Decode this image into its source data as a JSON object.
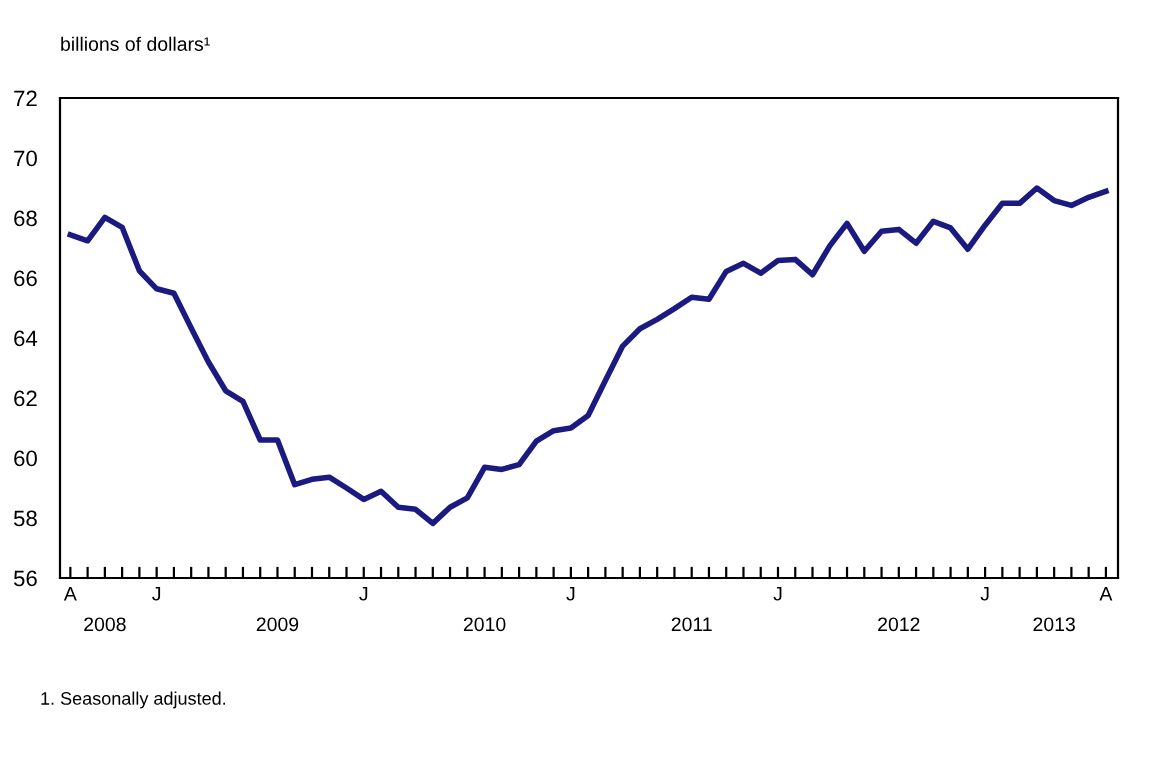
{
  "chart_data": {
    "type": "line",
    "ylabel": "billions of dollars¹",
    "categories": [
      "A",
      null,
      "2008",
      null,
      null,
      "J",
      null,
      null,
      null,
      null,
      null,
      null,
      "2009",
      null,
      null,
      null,
      null,
      "J",
      null,
      null,
      null,
      null,
      null,
      null,
      "2010",
      null,
      null,
      null,
      null,
      "J",
      null,
      null,
      null,
      null,
      null,
      null,
      "2011",
      null,
      null,
      null,
      null,
      "J",
      null,
      null,
      null,
      null,
      null,
      null,
      "2012",
      null,
      null,
      null,
      null,
      "J",
      null,
      null,
      null,
      "2013",
      null,
      null,
      "A"
    ],
    "series": [
      {
        "color": "#1a1a80",
        "values": [
          67.44,
          67.24,
          68.02,
          67.69,
          66.24,
          65.64,
          65.49,
          64.33,
          63.2,
          62.24,
          61.89,
          60.6,
          60.6,
          59.11,
          59.29,
          59.36,
          59.0,
          58.62,
          58.89,
          58.36,
          58.29,
          57.82,
          58.36,
          58.67,
          59.69,
          59.62,
          59.78,
          60.56,
          60.91,
          61.0,
          61.42,
          62.58,
          63.73,
          64.31,
          64.62,
          64.98,
          65.36,
          65.29,
          66.22,
          66.49,
          66.16,
          66.58,
          66.62,
          66.11,
          67.07,
          67.82,
          66.89,
          67.56,
          67.62,
          67.16,
          67.89,
          67.67,
          66.96,
          67.76,
          68.49,
          68.49,
          69.0,
          68.58,
          68.42,
          68.69,
          68.89
        ]
      }
    ],
    "ylim": [
      56,
      72
    ],
    "yticks": [
      56,
      58,
      60,
      62,
      64,
      66,
      68,
      70,
      72
    ],
    "grid": false,
    "marker": "none",
    "line_style": "solid",
    "annotations": [
      "1. Seasonally adjusted."
    ]
  }
}
